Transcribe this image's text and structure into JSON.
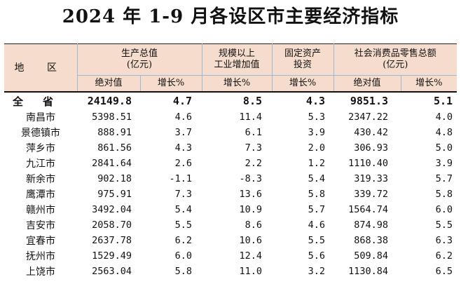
{
  "title": "2024 年 1-9 月各设区市主要经济指标",
  "header": {
    "region": "地 区",
    "gdp": "生产总值\n(亿元)",
    "industry": "规模以上\n工业增加值",
    "investment": "固定资产\n投资",
    "retail": "社会消费品零售总额\n(亿元)",
    "absolute": "绝对值",
    "growth": "增长%"
  },
  "total": {
    "region": "全省",
    "gdp_abs": "24149.8",
    "gdp_growth": "4.7",
    "industry_growth": "8.5",
    "investment_growth": "4.3",
    "retail_abs": "9851.3",
    "retail_growth": "5.1"
  },
  "rows": [
    {
      "region": "南昌市",
      "gdp_abs": "5398.51",
      "gdp_growth": "4.6",
      "industry_growth": "11.4",
      "investment_growth": "5.3",
      "retail_abs": "2347.22",
      "retail_growth": "4.0"
    },
    {
      "region": "景德镇市",
      "gdp_abs": "888.91",
      "gdp_growth": "3.7",
      "industry_growth": "6.1",
      "investment_growth": "3.9",
      "retail_abs": "430.42",
      "retail_growth": "4.8"
    },
    {
      "region": "萍乡市",
      "gdp_abs": "861.56",
      "gdp_growth": "4.3",
      "industry_growth": "7.3",
      "investment_growth": "2.0",
      "retail_abs": "306.93",
      "retail_growth": "5.0"
    },
    {
      "region": "九江市",
      "gdp_abs": "2841.64",
      "gdp_growth": "2.6",
      "industry_growth": "2.2",
      "investment_growth": "1.2",
      "retail_abs": "1110.40",
      "retail_growth": "3.9"
    },
    {
      "region": "新余市",
      "gdp_abs": "902.18",
      "gdp_growth": "-1.1",
      "industry_growth": "-8.3",
      "investment_growth": "5.4",
      "retail_abs": "319.33",
      "retail_growth": "5.7"
    },
    {
      "region": "鹰潭市",
      "gdp_abs": "975.91",
      "gdp_growth": "7.3",
      "industry_growth": "13.6",
      "investment_growth": "5.8",
      "retail_abs": "339.72",
      "retail_growth": "5.8"
    },
    {
      "region": "赣州市",
      "gdp_abs": "3492.04",
      "gdp_growth": "5.4",
      "industry_growth": "10.9",
      "investment_growth": "5.7",
      "retail_abs": "1564.74",
      "retail_growth": "6.0"
    },
    {
      "region": "吉安市",
      "gdp_abs": "2058.70",
      "gdp_growth": "5.5",
      "industry_growth": "8.6",
      "investment_growth": "4.6",
      "retail_abs": "874.98",
      "retail_growth": "5.5"
    },
    {
      "region": "宜春市",
      "gdp_abs": "2637.78",
      "gdp_growth": "6.2",
      "industry_growth": "10.6",
      "investment_growth": "5.5",
      "retail_abs": "868.38",
      "retail_growth": "6.3"
    },
    {
      "region": "抚州市",
      "gdp_abs": "1529.49",
      "gdp_growth": "6.0",
      "industry_growth": "12.4",
      "investment_growth": "5.6",
      "retail_abs": "509.84",
      "retail_growth": "6.2"
    },
    {
      "region": "上饶市",
      "gdp_abs": "2563.04",
      "gdp_growth": "5.8",
      "industry_growth": "11.0",
      "investment_growth": "3.2",
      "retail_abs": "1130.84",
      "retail_growth": "6.5"
    }
  ]
}
